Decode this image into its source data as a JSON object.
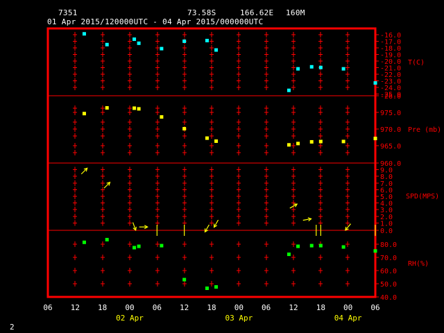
{
  "header": {
    "station_id": "7351",
    "latitude": "73.58S",
    "longitude": "166.62E",
    "elevation": "160M",
    "time_range": "01 Apr 2015/120000UTC - 04 Apr 2015/000000UTC"
  },
  "page_number": "2",
  "colors": {
    "frame": "#ff0000",
    "axis_text": "#ff0000",
    "hour_labels": "#ffffff",
    "date_labels": "#ffff00",
    "temperature": "#00ffff",
    "pressure": "#ffff00",
    "wind": "#ffff00",
    "humidity": "#00ff00"
  },
  "chart_data": {
    "type": "scatter",
    "x_axis": {
      "hour_ticks": [
        "06",
        "12",
        "18",
        "00",
        "06",
        "12",
        "18",
        "00",
        "06",
        "12",
        "18",
        "00",
        "06"
      ],
      "date_labels": [
        {
          "label": "02 Apr",
          "at_tick": 3
        },
        {
          "label": "03 Apr",
          "at_tick": 7
        },
        {
          "label": "04 Apr",
          "at_tick": 11
        }
      ],
      "units": "hours since 01 Apr 06 UTC",
      "range": [
        0,
        72
      ]
    },
    "panels": [
      {
        "id": "temperature",
        "label": "T(C)",
        "ylim": [
          -26,
          -16
        ],
        "ticks": [
          "-16.0",
          "-17.0",
          "-18.0",
          "-19.0",
          "-20.0",
          "-21.0",
          "-22.0",
          "-23.0",
          "-24.0",
          "-25.0",
          "-26.0"
        ],
        "points": [
          {
            "x": 8,
            "y": -16.8
          },
          {
            "x": 13,
            "y": -18.4
          },
          {
            "x": 19,
            "y": -17.6
          },
          {
            "x": 20,
            "y": -18.2
          },
          {
            "x": 25,
            "y": -19.0
          },
          {
            "x": 30,
            "y": -17.9
          },
          {
            "x": 35,
            "y": -17.8
          },
          {
            "x": 37,
            "y": -19.2
          },
          {
            "x": 53,
            "y": -25.2
          },
          {
            "x": 55,
            "y": -22.0
          },
          {
            "x": 58,
            "y": -21.7
          },
          {
            "x": 60,
            "y": -21.8
          },
          {
            "x": 65,
            "y": -22.0
          },
          {
            "x": 72,
            "y": -24.1
          }
        ]
      },
      {
        "id": "pressure",
        "label": "Pre (mb)",
        "ylim": [
          960,
          980
        ],
        "ticks": [
          "975.0",
          "970.0",
          "965.0",
          "960.0"
        ],
        "points": [
          {
            "x": 8,
            "y": 974.7
          },
          {
            "x": 13,
            "y": 976.4
          },
          {
            "x": 19,
            "y": 976.3
          },
          {
            "x": 20,
            "y": 976.1
          },
          {
            "x": 25,
            "y": 973.7
          },
          {
            "x": 30,
            "y": 970.2
          },
          {
            "x": 35,
            "y": 967.4
          },
          {
            "x": 37,
            "y": 966.5
          },
          {
            "x": 53,
            "y": 965.4
          },
          {
            "x": 55,
            "y": 965.8
          },
          {
            "x": 58,
            "y": 966.3
          },
          {
            "x": 60,
            "y": 966.4
          },
          {
            "x": 65,
            "y": 966.4
          },
          {
            "x": 72,
            "y": 967.3
          }
        ]
      },
      {
        "id": "wind",
        "label": "SPD(MPS)",
        "ylim": [
          0,
          10
        ],
        "ticks": [
          "9.0",
          "8.0",
          "7.0",
          "6.0",
          "5.0",
          "4.0",
          "3.0",
          "2.0",
          "1.0",
          "0.0"
        ],
        "barbs": [
          {
            "x": 8,
            "speed": 8.8,
            "angle": -45
          },
          {
            "x": 13,
            "speed": 6.7,
            "angle": -45
          },
          {
            "x": 19,
            "speed": 0.6,
            "angle": 70
          },
          {
            "x": 21,
            "speed": 0.5,
            "angle": 0
          },
          {
            "x": 24,
            "speed": 0.0,
            "angle": 90
          },
          {
            "x": 30,
            "speed": 0.0,
            "angle": 100
          },
          {
            "x": 35,
            "speed": 0.3,
            "angle": 120
          },
          {
            "x": 37,
            "speed": 1.0,
            "angle": 120
          },
          {
            "x": 54,
            "speed": 3.6,
            "angle": -30
          },
          {
            "x": 57,
            "speed": 1.6,
            "angle": -10
          },
          {
            "x": 59,
            "speed": 0.0,
            "angle": 90
          },
          {
            "x": 60,
            "speed": 0.0,
            "angle": 90
          },
          {
            "x": 66,
            "speed": 0.5,
            "angle": 130
          },
          {
            "x": 72,
            "speed": 0.0,
            "angle": 90
          }
        ]
      },
      {
        "id": "humidity",
        "label": "RH(%)",
        "ylim": [
          40,
          90
        ],
        "ticks": [
          "80.0",
          "70.0",
          "60.0",
          "50.0",
          "40.0"
        ],
        "points": [
          {
            "x": 8,
            "y": 81.0
          },
          {
            "x": 13,
            "y": 83.0
          },
          {
            "x": 19,
            "y": 77.0
          },
          {
            "x": 20,
            "y": 78.0
          },
          {
            "x": 25,
            "y": 78.5
          },
          {
            "x": 30,
            "y": 53.0
          },
          {
            "x": 35,
            "y": 46.5
          },
          {
            "x": 37,
            "y": 47.5
          },
          {
            "x": 53,
            "y": 72.0
          },
          {
            "x": 55,
            "y": 78.0
          },
          {
            "x": 58,
            "y": 78.5
          },
          {
            "x": 60,
            "y": 78.5
          },
          {
            "x": 65,
            "y": 77.5
          },
          {
            "x": 72,
            "y": 74.5
          }
        ]
      }
    ]
  }
}
